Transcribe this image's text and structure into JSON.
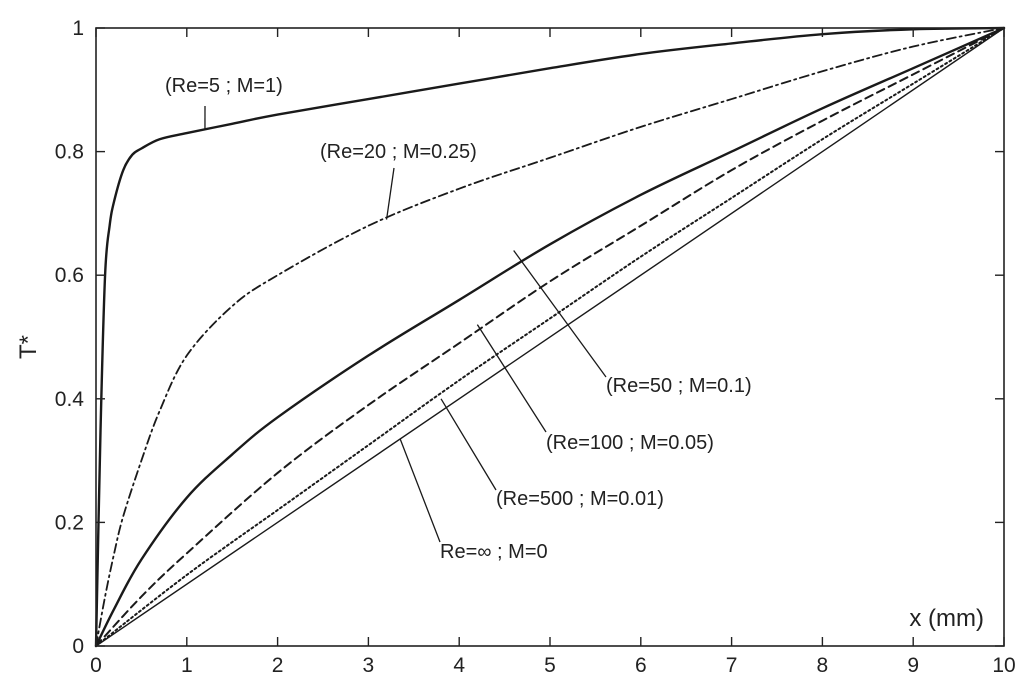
{
  "chart_data": {
    "type": "line",
    "title": "",
    "xlabel": "x (mm)",
    "ylabel": "T*",
    "xlim": [
      0,
      10
    ],
    "ylim": [
      0,
      1
    ],
    "xticks": [
      0,
      1,
      2,
      3,
      4,
      5,
      6,
      7,
      8,
      9,
      10
    ],
    "yticks": [
      0,
      0.2,
      0.4,
      0.6,
      0.8,
      1
    ],
    "xtick_labels": [
      "0",
      "1",
      "2",
      "3",
      "4",
      "5",
      "6",
      "7",
      "8",
      "9",
      "10"
    ],
    "ytick_labels": [
      "0",
      "0.2",
      "0.4",
      "0.6",
      "0.8",
      "1"
    ],
    "grid": false,
    "legend": "none",
    "series": [
      {
        "name": "(Re=5 ; M=1)",
        "style": "solid",
        "x": [
          0,
          0.05,
          0.1,
          0.15,
          0.2,
          0.3,
          0.4,
          0.5,
          0.7,
          1,
          1.5,
          2,
          3,
          4,
          5,
          6,
          7,
          8,
          9,
          10
        ],
        "y": [
          0,
          0.35,
          0.6,
          0.68,
          0.72,
          0.77,
          0.795,
          0.805,
          0.82,
          0.83,
          0.845,
          0.86,
          0.885,
          0.91,
          0.935,
          0.958,
          0.975,
          0.99,
          0.998,
          1.0
        ]
      },
      {
        "name": "(Re=20 ; M=0.25)",
        "style": "dashdot",
        "x": [
          0,
          0.1,
          0.2,
          0.3,
          0.5,
          0.7,
          1,
          1.5,
          2,
          3,
          4,
          5,
          6,
          7,
          8,
          9,
          10
        ],
        "y": [
          0,
          0.08,
          0.15,
          0.21,
          0.3,
          0.38,
          0.47,
          0.55,
          0.6,
          0.68,
          0.74,
          0.79,
          0.84,
          0.885,
          0.93,
          0.97,
          1.0
        ]
      },
      {
        "name": "(Re=50 ; M=0.1)",
        "style": "solid",
        "x": [
          0,
          0.2,
          0.5,
          1,
          1.5,
          2,
          3,
          4,
          5,
          6,
          7,
          8,
          9,
          10
        ],
        "y": [
          0,
          0.06,
          0.14,
          0.24,
          0.31,
          0.37,
          0.47,
          0.56,
          0.65,
          0.73,
          0.8,
          0.87,
          0.935,
          1.0
        ]
      },
      {
        "name": "(Re=100 ; M=0.05)",
        "style": "dashed",
        "x": [
          0,
          0.5,
          1,
          2,
          3,
          4,
          5,
          6,
          7,
          8,
          9,
          10
        ],
        "y": [
          0,
          0.08,
          0.15,
          0.28,
          0.39,
          0.49,
          0.59,
          0.68,
          0.77,
          0.85,
          0.925,
          1.0
        ]
      },
      {
        "name": "(Re=500 ; M=0.01)",
        "style": "dotted",
        "x": [
          0,
          1,
          2,
          3,
          4,
          5,
          6,
          7,
          8,
          9,
          10
        ],
        "y": [
          0,
          0.115,
          0.22,
          0.325,
          0.43,
          0.53,
          0.63,
          0.725,
          0.82,
          0.91,
          1.0
        ]
      },
      {
        "name": "Re=∞ ; M=0",
        "style": "solid-thin",
        "x": [
          0,
          10
        ],
        "y": [
          0,
          1.0
        ]
      }
    ],
    "annotations": [
      {
        "text": "(Re=5 ; M=1)",
        "series": 0,
        "point": [
          1.2,
          0.835
        ]
      },
      {
        "text": "(Re=20 ; M=0.25)",
        "series": 1,
        "point": [
          3.2,
          0.69
        ]
      },
      {
        "text": "(Re=50 ; M=0.1)",
        "series": 2,
        "point": [
          4.6,
          0.64
        ]
      },
      {
        "text": "(Re=100 ; M=0.05)",
        "series": 3,
        "point": [
          4.2,
          0.52
        ]
      },
      {
        "text": "(Re=500 ; M=0.01)",
        "series": 4,
        "point": [
          3.8,
          0.4
        ]
      },
      {
        "text": "Re=∞ ; M=0",
        "series": 5,
        "point": [
          3.35,
          0.335
        ]
      }
    ]
  }
}
